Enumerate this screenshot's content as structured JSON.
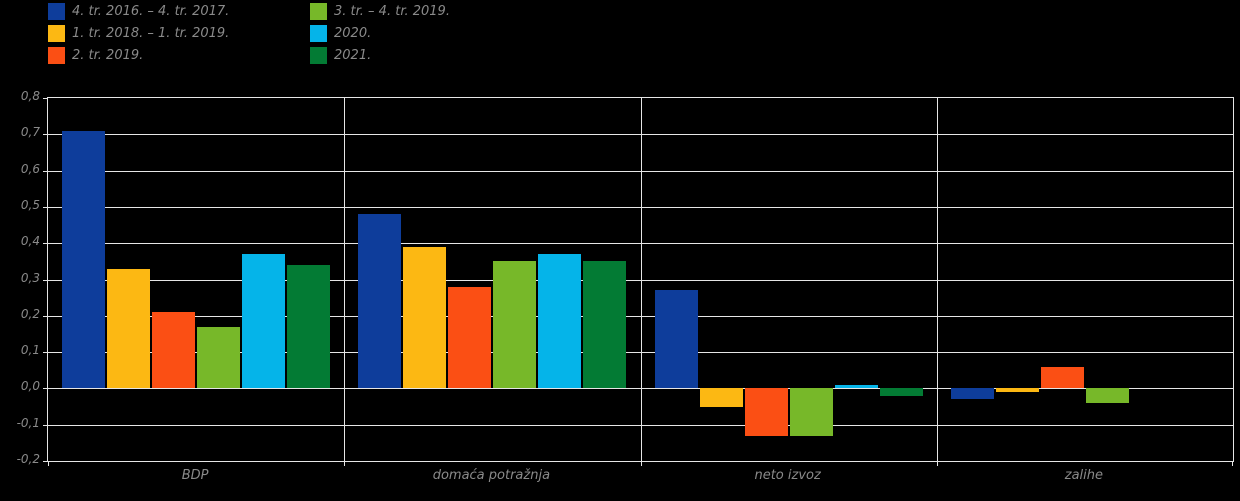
{
  "legend": {
    "items": [
      {
        "label": "4. tr. 2016. – 4. tr. 2017.",
        "color": "#0e3d9b",
        "column": 0,
        "row": 0
      },
      {
        "label": "1. tr. 2018. – 1. tr. 2019.",
        "color": "#fcb813",
        "column": 0,
        "row": 1
      },
      {
        "label": "2. tr. 2019.",
        "color": "#fb4f14",
        "column": 0,
        "row": 2
      },
      {
        "label": "3. tr. – 4. tr. 2019.",
        "color": "#77b829",
        "column": 1,
        "row": 0
      },
      {
        "label": "2020.",
        "color": "#05b4e9",
        "column": 1,
        "row": 1
      },
      {
        "label": "2021.",
        "color": "#037b34",
        "column": 1,
        "row": 2
      }
    ]
  },
  "chart_data": {
    "type": "bar",
    "title": "",
    "xlabel": "",
    "ylabel": "",
    "categories": [
      "BDP",
      "domaća potražnja",
      "neto izvoz",
      "zalihe"
    ],
    "series": [
      {
        "name": "4. tr. 2016. – 4. tr. 2017.",
        "color": "#0e3d9b",
        "values": [
          0.71,
          0.48,
          0.27,
          -0.03
        ]
      },
      {
        "name": "1. tr. 2018. – 1. tr. 2019.",
        "color": "#fcb813",
        "values": [
          0.33,
          0.39,
          -0.05,
          -0.01
        ]
      },
      {
        "name": "2. tr. 2019.",
        "color": "#fb4f14",
        "values": [
          0.21,
          0.28,
          -0.13,
          0.06
        ]
      },
      {
        "name": "3. tr. – 4. tr. 2019.",
        "color": "#77b829",
        "values": [
          0.17,
          0.35,
          -0.13,
          -0.04
        ]
      },
      {
        "name": "2020.",
        "color": "#05b4e9",
        "values": [
          0.37,
          0.37,
          0.01,
          0.0
        ]
      },
      {
        "name": "2021.",
        "color": "#037b34",
        "values": [
          0.34,
          0.35,
          -0.02,
          0.0
        ]
      }
    ],
    "ylim": [
      -0.2,
      0.8
    ],
    "ytick_step": 0.1,
    "ytick_labels": [
      "0,8",
      "0,7",
      "0,6",
      "0,5",
      "0,4",
      "0,3",
      "0,2",
      "0,1",
      "0,0",
      "-0,1",
      "-0,2"
    ],
    "grid": true,
    "legend_position": "top-left",
    "colors": {
      "background": "#000000",
      "grid": "#e6e6e6",
      "text": "#8a8a8a"
    }
  }
}
